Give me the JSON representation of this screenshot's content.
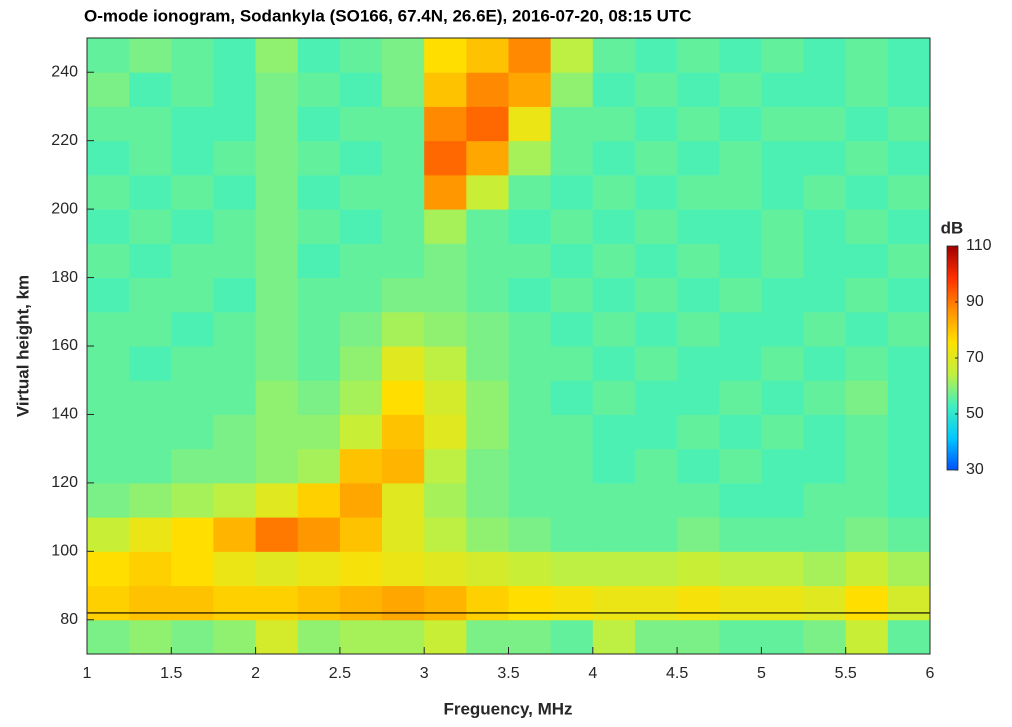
{
  "chart_data": {
    "type": "heatmap",
    "title": "O-mode ionogram, Sodankyla (SO166, 67.4N, 26.6E), 2016-07-20, 08:15 UTC",
    "x_label": "Freguency, MHz",
    "y_label": "Virtual height, km",
    "colorbar_label": "dB",
    "xlim": [
      1,
      6
    ],
    "ylim": [
      70,
      250
    ],
    "xticks": [
      1,
      1.5,
      2,
      2.5,
      3,
      3.5,
      4,
      4.5,
      5,
      5.5,
      6
    ],
    "yticks": [
      80,
      100,
      120,
      140,
      160,
      180,
      200,
      220,
      240
    ],
    "clim": [
      30,
      110
    ],
    "cticks": [
      30,
      50,
      70,
      90,
      110
    ],
    "colormap": [
      "#0050ff",
      "#00c8ff",
      "#40f0c0",
      "#c0f040",
      "#ffe000",
      "#ff9000",
      "#ff3000",
      "#a00000"
    ],
    "xbins": [
      1,
      1.25,
      1.5,
      1.75,
      2,
      2.25,
      2.5,
      2.75,
      3,
      3.25,
      3.5,
      3.75,
      4,
      4.25,
      4.5,
      4.75,
      5,
      5.25,
      5.5,
      5.75,
      6
    ],
    "ybins": [
      70,
      80,
      90,
      100,
      110,
      120,
      130,
      140,
      150,
      160,
      170,
      180,
      190,
      200,
      210,
      220,
      230,
      240,
      250
    ],
    "z": [
      [
        58,
        60,
        58,
        60,
        68,
        60,
        62,
        62,
        66,
        58,
        58,
        56,
        64,
        58,
        58,
        56,
        56,
        58,
        66,
        56
      ],
      [
        78,
        80,
        80,
        78,
        78,
        80,
        82,
        84,
        82,
        78,
        76,
        74,
        72,
        72,
        74,
        72,
        72,
        70,
        76,
        68
      ],
      [
        76,
        78,
        76,
        72,
        70,
        72,
        74,
        72,
        70,
        68,
        66,
        64,
        64,
        64,
        66,
        64,
        64,
        62,
        66,
        62
      ],
      [
        66,
        72,
        76,
        82,
        90,
        86,
        80,
        70,
        64,
        60,
        58,
        56,
        56,
        56,
        58,
        56,
        56,
        56,
        58,
        56
      ],
      [
        58,
        60,
        62,
        64,
        70,
        78,
        84,
        70,
        62,
        58,
        56,
        56,
        56,
        56,
        56,
        54,
        54,
        56,
        56,
        54
      ],
      [
        56,
        56,
        58,
        58,
        60,
        62,
        80,
        82,
        64,
        58,
        56,
        56,
        54,
        56,
        54,
        56,
        54,
        54,
        56,
        54
      ],
      [
        56,
        56,
        56,
        58,
        60,
        60,
        66,
        80,
        70,
        60,
        56,
        56,
        54,
        54,
        56,
        54,
        56,
        54,
        56,
        54
      ],
      [
        56,
        56,
        56,
        56,
        60,
        58,
        62,
        76,
        68,
        60,
        56,
        54,
        56,
        54,
        54,
        56,
        54,
        56,
        58,
        54
      ],
      [
        56,
        54,
        56,
        56,
        58,
        56,
        60,
        70,
        64,
        58,
        56,
        56,
        54,
        56,
        54,
        54,
        56,
        54,
        56,
        54
      ],
      [
        56,
        56,
        54,
        56,
        58,
        56,
        58,
        62,
        60,
        58,
        56,
        54,
        56,
        54,
        56,
        54,
        54,
        56,
        54,
        56
      ],
      [
        54,
        56,
        56,
        54,
        58,
        56,
        56,
        58,
        58,
        56,
        54,
        56,
        54,
        56,
        54,
        56,
        54,
        54,
        56,
        54
      ],
      [
        56,
        54,
        56,
        56,
        58,
        54,
        56,
        56,
        58,
        56,
        56,
        54,
        56,
        54,
        56,
        54,
        56,
        54,
        54,
        56
      ],
      [
        54,
        56,
        54,
        56,
        58,
        56,
        54,
        56,
        62,
        56,
        54,
        56,
        54,
        56,
        54,
        54,
        56,
        54,
        56,
        54
      ],
      [
        56,
        54,
        56,
        54,
        58,
        54,
        56,
        56,
        86,
        66,
        56,
        54,
        56,
        54,
        56,
        56,
        54,
        56,
        54,
        56
      ],
      [
        54,
        56,
        54,
        56,
        58,
        56,
        54,
        56,
        92,
        84,
        62,
        56,
        54,
        56,
        54,
        56,
        54,
        54,
        56,
        54
      ],
      [
        56,
        56,
        54,
        54,
        58,
        54,
        56,
        56,
        88,
        92,
        72,
        56,
        56,
        54,
        56,
        54,
        56,
        56,
        54,
        56
      ],
      [
        58,
        54,
        56,
        54,
        58,
        56,
        54,
        58,
        80,
        88,
        84,
        60,
        54,
        56,
        54,
        56,
        54,
        54,
        56,
        54
      ],
      [
        56,
        58,
        56,
        54,
        60,
        54,
        56,
        58,
        76,
        80,
        88,
        64,
        56,
        54,
        56,
        54,
        56,
        54,
        56,
        54
      ]
    ],
    "hline": 82
  }
}
